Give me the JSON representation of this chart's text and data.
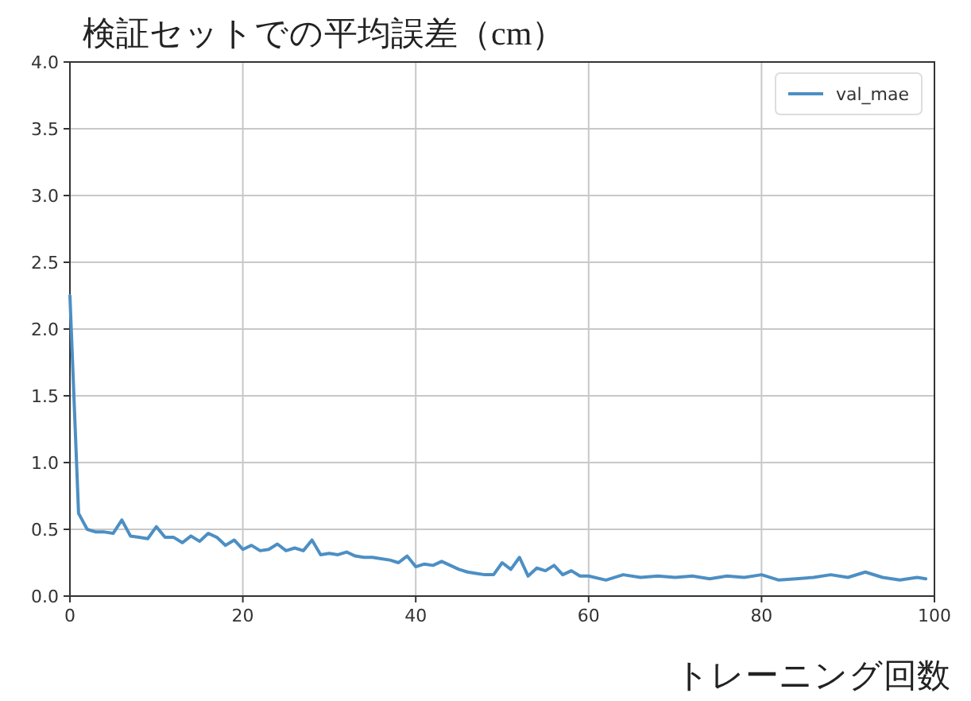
{
  "chart_data": {
    "type": "line",
    "title": "検証セットでの平均誤差（cm）",
    "xlabel": "トレーニング回数",
    "x": [
      0,
      1,
      2,
      3,
      4,
      5,
      6,
      7,
      8,
      9,
      10,
      11,
      12,
      13,
      14,
      15,
      16,
      17,
      18,
      19,
      20,
      21,
      22,
      23,
      24,
      25,
      26,
      27,
      28,
      29,
      30,
      31,
      32,
      33,
      34,
      35,
      36,
      37,
      38,
      39,
      40,
      41,
      42,
      43,
      44,
      45,
      46,
      47,
      48,
      49,
      50,
      51,
      52,
      53,
      54,
      55,
      56,
      57,
      58,
      59,
      60,
      62,
      64,
      66,
      68,
      70,
      72,
      74,
      76,
      78,
      80,
      82,
      84,
      86,
      88,
      90,
      92,
      94,
      96,
      98,
      99
    ],
    "series": [
      {
        "name": "val_mae",
        "color": "#4c8fc4",
        "values": [
          2.25,
          0.62,
          0.5,
          0.48,
          0.48,
          0.47,
          0.57,
          0.45,
          0.44,
          0.43,
          0.52,
          0.44,
          0.44,
          0.4,
          0.45,
          0.41,
          0.47,
          0.44,
          0.38,
          0.42,
          0.35,
          0.38,
          0.34,
          0.35,
          0.39,
          0.34,
          0.36,
          0.34,
          0.42,
          0.31,
          0.32,
          0.31,
          0.33,
          0.3,
          0.29,
          0.29,
          0.28,
          0.27,
          0.25,
          0.3,
          0.22,
          0.24,
          0.23,
          0.26,
          0.23,
          0.2,
          0.18,
          0.17,
          0.16,
          0.16,
          0.25,
          0.2,
          0.29,
          0.15,
          0.21,
          0.19,
          0.23,
          0.16,
          0.19,
          0.15,
          0.15,
          0.12,
          0.16,
          0.14,
          0.15,
          0.14,
          0.15,
          0.13,
          0.15,
          0.14,
          0.16,
          0.12,
          0.13,
          0.14,
          0.16,
          0.14,
          0.18,
          0.14,
          0.12,
          0.14,
          0.13
        ]
      }
    ],
    "xlim": [
      0,
      100
    ],
    "ylim": [
      0,
      4
    ],
    "xticks": [
      0,
      20,
      40,
      60,
      80,
      100
    ],
    "yticks": [
      {
        "value": 0,
        "label": "0.0"
      },
      {
        "value": 0.5,
        "label": "0.5"
      },
      {
        "value": 1,
        "label": "1.0"
      },
      {
        "value": 1.5,
        "label": "1.5"
      },
      {
        "value": 2,
        "label": "2.0"
      },
      {
        "value": 2.5,
        "label": "2.5"
      },
      {
        "value": 3,
        "label": "3.0"
      },
      {
        "value": 3.5,
        "label": "3.5"
      },
      {
        "value": 4,
        "label": "4.0"
      }
    ],
    "grid": true,
    "legend": "top right",
    "line_style": "solid",
    "marker": "none"
  }
}
